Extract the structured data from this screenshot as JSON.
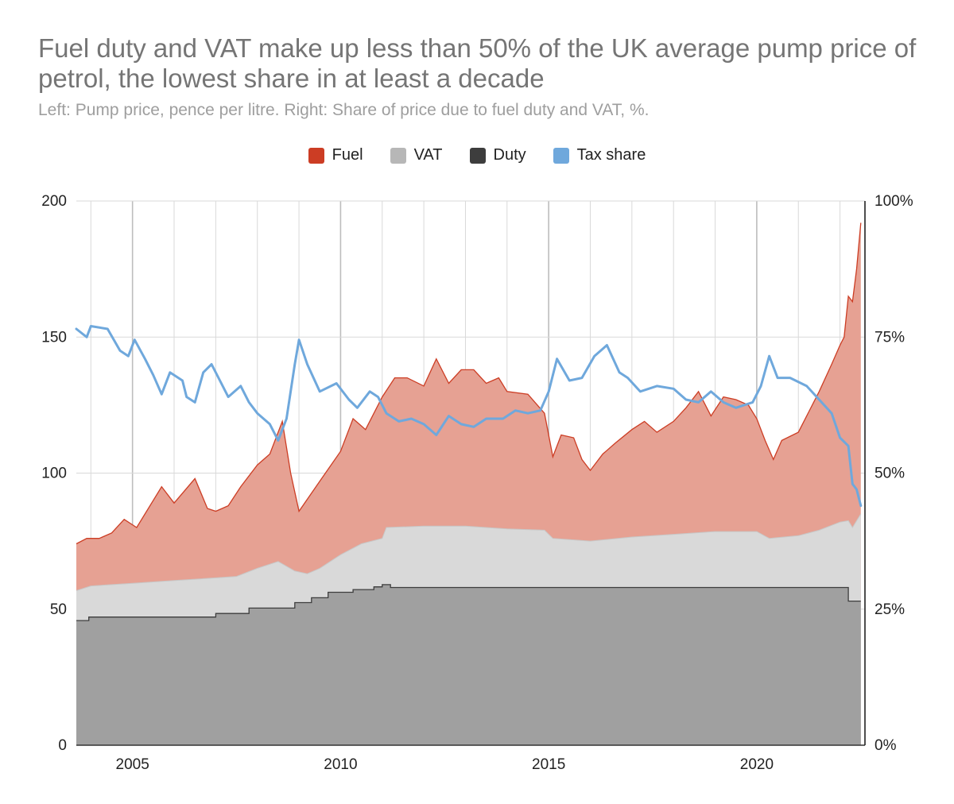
{
  "title": "Fuel duty and VAT make up less than 50% of the UK average pump price of petrol, the lowest share in at least a decade",
  "subtitle": "Left: Pump price, pence per litre. Right: Share of price due to fuel duty and VAT, %.",
  "legend": [
    {
      "label": "Fuel",
      "color": "#cc3d24"
    },
    {
      "label": "VAT",
      "color": "#b7b7b7"
    },
    {
      "label": "Duty",
      "color": "#3d3d3d"
    },
    {
      "label": "Tax share",
      "color": "#6fa8dc"
    }
  ],
  "chart_data": {
    "type": "area",
    "title": "Fuel duty and VAT make up less than 50% of the UK average pump price of petrol, the lowest share in at least a decade",
    "subtitle": "Left: Pump price, pence per litre. Right: Share of price due to fuel duty and VAT, %.",
    "x_unit": "year",
    "xlim": [
      2003.65,
      2022.6
    ],
    "left_axis": {
      "ylim": [
        0,
        200
      ],
      "ticks": [
        "0",
        "50",
        "100",
        "150",
        "200"
      ]
    },
    "right_axis": {
      "ylim": [
        0,
        100
      ],
      "ticks": [
        "0%",
        "25%",
        "50%",
        "75%",
        "100%"
      ]
    },
    "x_ticks": [
      "2005",
      "2010",
      "2015",
      "2020"
    ],
    "grid": true,
    "legend_position": "top",
    "series": [
      {
        "name": "Duty",
        "kind": "stacked-area",
        "axis": "left",
        "points": [
          [
            2003.65,
            45.8
          ],
          [
            2003.95,
            45.8
          ],
          [
            2003.95,
            47.1
          ],
          [
            2007.0,
            47.1
          ],
          [
            2007.0,
            48.4
          ],
          [
            2007.8,
            48.4
          ],
          [
            2007.8,
            50.4
          ],
          [
            2008.9,
            50.4
          ],
          [
            2008.9,
            52.4
          ],
          [
            2009.3,
            52.4
          ],
          [
            2009.3,
            54.2
          ],
          [
            2009.7,
            54.2
          ],
          [
            2009.7,
            56.2
          ],
          [
            2010.3,
            56.2
          ],
          [
            2010.3,
            57.2
          ],
          [
            2010.8,
            57.2
          ],
          [
            2010.8,
            58.2
          ],
          [
            2011.0,
            58.2
          ],
          [
            2011.0,
            59.0
          ],
          [
            2011.2,
            59.0
          ],
          [
            2011.2,
            57.95
          ],
          [
            2022.2,
            57.95
          ],
          [
            2022.2,
            52.95
          ],
          [
            2022.5,
            52.95
          ]
        ]
      },
      {
        "name": "VAT",
        "kind": "stacked-area",
        "axis": "left",
        "points": [
          [
            2003.65,
            56.8
          ],
          [
            2004.0,
            58.5
          ],
          [
            2005.0,
            59.5
          ],
          [
            2005.5,
            60.0
          ],
          [
            2006.0,
            60.5
          ],
          [
            2007.0,
            61.5
          ],
          [
            2007.5,
            62.0
          ],
          [
            2008.0,
            65.0
          ],
          [
            2008.5,
            67.5
          ],
          [
            2008.9,
            64.0
          ],
          [
            2009.2,
            63.0
          ],
          [
            2009.5,
            65.0
          ],
          [
            2010.0,
            70.0
          ],
          [
            2010.5,
            74.0
          ],
          [
            2011.0,
            76.0
          ],
          [
            2011.1,
            80.0
          ],
          [
            2012.0,
            80.5
          ],
          [
            2013.0,
            80.5
          ],
          [
            2014.0,
            79.5
          ],
          [
            2014.9,
            79.0
          ],
          [
            2015.1,
            76.0
          ],
          [
            2016.0,
            75.0
          ],
          [
            2017.0,
            76.5
          ],
          [
            2018.0,
            77.5
          ],
          [
            2019.0,
            78.5
          ],
          [
            2020.0,
            78.5
          ],
          [
            2020.3,
            76.0
          ],
          [
            2021.0,
            77.0
          ],
          [
            2021.5,
            79.0
          ],
          [
            2022.0,
            82.0
          ],
          [
            2022.2,
            82.5
          ],
          [
            2022.3,
            80.0
          ],
          [
            2022.5,
            85.0
          ]
        ]
      },
      {
        "name": "Fuel",
        "kind": "stacked-area",
        "axis": "left",
        "points": [
          [
            2003.65,
            74.0
          ],
          [
            2003.9,
            76.0
          ],
          [
            2004.2,
            76.0
          ],
          [
            2004.5,
            78.0
          ],
          [
            2004.8,
            83.0
          ],
          [
            2005.1,
            80.0
          ],
          [
            2005.5,
            90.0
          ],
          [
            2005.7,
            95.0
          ],
          [
            2006.0,
            89.0
          ],
          [
            2006.5,
            98.0
          ],
          [
            2006.8,
            87.0
          ],
          [
            2007.0,
            86.0
          ],
          [
            2007.3,
            88.0
          ],
          [
            2007.6,
            95.0
          ],
          [
            2008.0,
            103.0
          ],
          [
            2008.3,
            107.0
          ],
          [
            2008.6,
            119.0
          ],
          [
            2008.8,
            100.0
          ],
          [
            2009.0,
            86.0
          ],
          [
            2009.5,
            97.0
          ],
          [
            2010.0,
            108.0
          ],
          [
            2010.3,
            120.0
          ],
          [
            2010.6,
            116.0
          ],
          [
            2011.0,
            128.0
          ],
          [
            2011.3,
            135.0
          ],
          [
            2011.6,
            135.0
          ],
          [
            2012.0,
            132.0
          ],
          [
            2012.3,
            142.0
          ],
          [
            2012.6,
            133.0
          ],
          [
            2012.9,
            138.0
          ],
          [
            2013.2,
            138.0
          ],
          [
            2013.5,
            133.0
          ],
          [
            2013.8,
            135.0
          ],
          [
            2014.0,
            130.0
          ],
          [
            2014.5,
            129.0
          ],
          [
            2014.9,
            122.0
          ],
          [
            2015.1,
            106.0
          ],
          [
            2015.3,
            114.0
          ],
          [
            2015.6,
            113.0
          ],
          [
            2015.8,
            105.0
          ],
          [
            2016.0,
            101.0
          ],
          [
            2016.3,
            107.0
          ],
          [
            2016.6,
            111.0
          ],
          [
            2017.0,
            116.0
          ],
          [
            2017.3,
            119.0
          ],
          [
            2017.6,
            115.0
          ],
          [
            2018.0,
            119.0
          ],
          [
            2018.3,
            124.0
          ],
          [
            2018.6,
            130.0
          ],
          [
            2018.9,
            121.0
          ],
          [
            2019.2,
            128.0
          ],
          [
            2019.5,
            127.0
          ],
          [
            2019.8,
            125.0
          ],
          [
            2020.0,
            120.0
          ],
          [
            2020.2,
            112.0
          ],
          [
            2020.4,
            105.0
          ],
          [
            2020.6,
            112.0
          ],
          [
            2021.0,
            115.0
          ],
          [
            2021.5,
            130.0
          ],
          [
            2021.8,
            140.0
          ],
          [
            2022.0,
            147.0
          ],
          [
            2022.1,
            150.0
          ],
          [
            2022.2,
            165.0
          ],
          [
            2022.3,
            163.0
          ],
          [
            2022.4,
            175.0
          ],
          [
            2022.5,
            192.0
          ]
        ]
      },
      {
        "name": "Tax share",
        "kind": "line",
        "axis": "right",
        "points": [
          [
            2003.65,
            76.5
          ],
          [
            2003.9,
            75.0
          ],
          [
            2004.0,
            77.0
          ],
          [
            2004.4,
            76.5
          ],
          [
            2004.7,
            72.5
          ],
          [
            2004.9,
            71.5
          ],
          [
            2005.05,
            74.5
          ],
          [
            2005.3,
            71.0
          ],
          [
            2005.5,
            68.0
          ],
          [
            2005.7,
            64.5
          ],
          [
            2005.9,
            68.5
          ],
          [
            2006.2,
            67.0
          ],
          [
            2006.3,
            64.0
          ],
          [
            2006.5,
            63.0
          ],
          [
            2006.7,
            68.5
          ],
          [
            2006.9,
            70.0
          ],
          [
            2007.1,
            67.0
          ],
          [
            2007.3,
            64.0
          ],
          [
            2007.6,
            66.0
          ],
          [
            2007.8,
            63.0
          ],
          [
            2008.0,
            61.0
          ],
          [
            2008.3,
            59.0
          ],
          [
            2008.5,
            56.0
          ],
          [
            2008.7,
            60.0
          ],
          [
            2008.9,
            70.0
          ],
          [
            2009.0,
            74.5
          ],
          [
            2009.2,
            70.0
          ],
          [
            2009.5,
            65.0
          ],
          [
            2009.9,
            66.5
          ],
          [
            2010.2,
            63.5
          ],
          [
            2010.4,
            62.0
          ],
          [
            2010.7,
            65.0
          ],
          [
            2010.9,
            64.0
          ],
          [
            2011.1,
            61.0
          ],
          [
            2011.4,
            59.5
          ],
          [
            2011.7,
            60.0
          ],
          [
            2012.0,
            59.0
          ],
          [
            2012.3,
            57.0
          ],
          [
            2012.6,
            60.5
          ],
          [
            2012.9,
            59.0
          ],
          [
            2013.2,
            58.5
          ],
          [
            2013.5,
            60.0
          ],
          [
            2013.9,
            60.0
          ],
          [
            2014.2,
            61.5
          ],
          [
            2014.5,
            61.0
          ],
          [
            2014.8,
            61.5
          ],
          [
            2015.0,
            65.0
          ],
          [
            2015.2,
            71.0
          ],
          [
            2015.5,
            67.0
          ],
          [
            2015.8,
            67.5
          ],
          [
            2016.1,
            71.5
          ],
          [
            2016.4,
            73.5
          ],
          [
            2016.7,
            68.5
          ],
          [
            2016.9,
            67.5
          ],
          [
            2017.2,
            65.0
          ],
          [
            2017.6,
            66.0
          ],
          [
            2018.0,
            65.5
          ],
          [
            2018.3,
            63.5
          ],
          [
            2018.6,
            63.0
          ],
          [
            2018.9,
            65.0
          ],
          [
            2019.2,
            63.0
          ],
          [
            2019.5,
            62.0
          ],
          [
            2019.9,
            63.0
          ],
          [
            2020.1,
            66.0
          ],
          [
            2020.3,
            71.5
          ],
          [
            2020.5,
            67.5
          ],
          [
            2020.8,
            67.5
          ],
          [
            2021.2,
            66.0
          ],
          [
            2021.5,
            63.5
          ],
          [
            2021.8,
            61.0
          ],
          [
            2022.0,
            56.5
          ],
          [
            2022.2,
            55.0
          ],
          [
            2022.3,
            48.0
          ],
          [
            2022.4,
            47.0
          ],
          [
            2022.5,
            44.0
          ]
        ]
      }
    ]
  }
}
